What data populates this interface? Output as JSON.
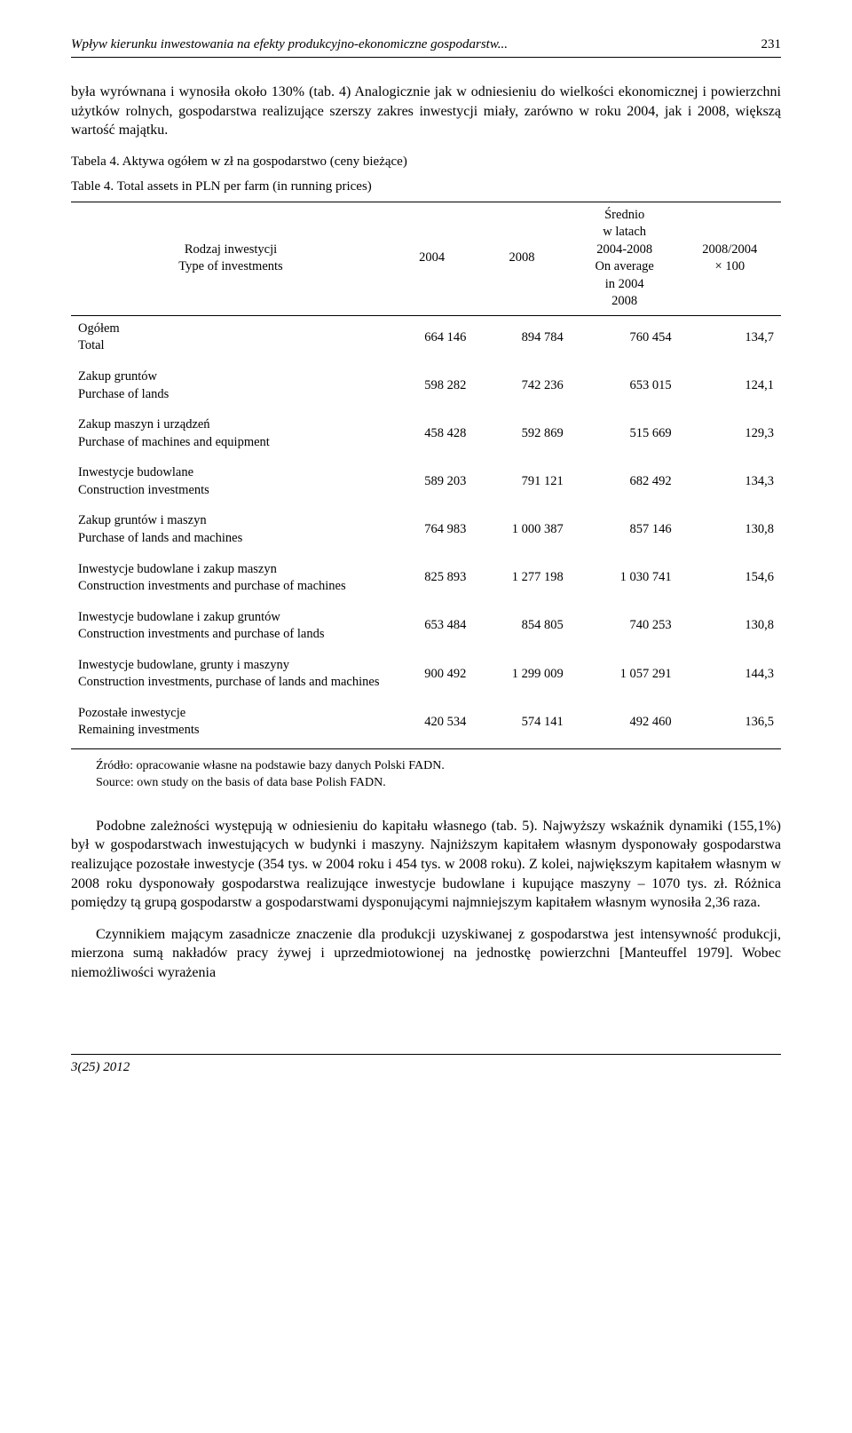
{
  "header": {
    "title": "Wpływ kierunku inwestowania na efekty produkcyjno-ekonomiczne gospodarstw...",
    "page": "231"
  },
  "para_intro": "była wyrównana i wynosiła około 130% (tab. 4) Analogicznie jak w odniesieniu do wielkości ekonomicznej i powierzchni użytków rolnych, gospodarstwa realizujące szerszy zakres inwestycji miały, zarówno w roku 2004, jak i 2008, większą wartość majątku.",
  "table": {
    "caption_pl": "Tabela 4. Aktywa ogółem w zł na gospodarstwo (ceny bieżące)",
    "caption_en": "Table 4.   Total assets in PLN per farm (in running prices)",
    "col_headers": {
      "c1": "Rodzaj inwestycji\nType of investments",
      "c2": "2004",
      "c3": "2008",
      "c4": "Średnio\nw latach\n2004-2008\nOn average\nin 2004\n2008",
      "c5": "2008/2004\n× 100"
    },
    "rows": [
      {
        "label_pl": "Ogółem",
        "label_en": "Total",
        "v": [
          "664 146",
          "894 784",
          "760 454",
          "134,7"
        ]
      },
      {
        "label_pl": "Zakup gruntów",
        "label_en": "Purchase of lands",
        "v": [
          "598 282",
          "742 236",
          "653 015",
          "124,1"
        ]
      },
      {
        "label_pl": "Zakup maszyn i urządzeń",
        "label_en": "Purchase of machines and equipment",
        "v": [
          "458 428",
          "592 869",
          "515 669",
          "129,3"
        ]
      },
      {
        "label_pl": "Inwestycje budowlane",
        "label_en": "Construction investments",
        "v": [
          "589 203",
          "791 121",
          "682 492",
          "134,3"
        ]
      },
      {
        "label_pl": "Zakup gruntów i maszyn",
        "label_en": "Purchase of lands and machines",
        "v": [
          "764 983",
          "1 000 387",
          "857 146",
          "130,8"
        ]
      },
      {
        "label_pl": "Inwestycje budowlane i zakup maszyn",
        "label_en": "Construction investments and purchase of machines",
        "v": [
          "825 893",
          "1 277 198",
          "1 030 741",
          "154,6"
        ]
      },
      {
        "label_pl": "Inwestycje budowlane i zakup gruntów",
        "label_en": "Construction investments and purchase of lands",
        "v": [
          "653 484",
          "854 805",
          "740 253",
          "130,8"
        ]
      },
      {
        "label_pl": "Inwestycje budowlane, grunty i maszyny",
        "label_en": "Construction investments, purchase of lands and machines",
        "v": [
          "900 492",
          "1 299 009",
          "1 057 291",
          "144,3"
        ]
      },
      {
        "label_pl": "Pozostałe inwestycje",
        "label_en": "Remaining investments",
        "v": [
          "420 534",
          "574 141",
          "492 460",
          "136,5"
        ]
      }
    ],
    "source_pl": "Źródło: opracowanie własne na podstawie bazy danych Polski FADN.",
    "source_en": "Source: own study on the basis of data base Polish FADN."
  },
  "para_body1": "Podobne zależności występują w odniesieniu do kapitału własnego (tab. 5). Najwyższy wskaźnik dynamiki (155,1%) był w gospodarstwach inwestujących w budynki i maszyny. Najniższym kapitałem własnym dysponowały gospodarstwa realizujące pozostałe inwestycje (354 tys. w 2004 roku i 454 tys. w 2008 roku). Z kolei, największym kapitałem własnym w 2008 roku dysponowały gospodarstwa realizujące inwestycje budowlane i kupujące maszyny – 1070 tys. zł. Różnica pomiędzy tą grupą gospodarstw a gospodarstwami dysponującymi najmniejszym kapitałem własnym wynosiła 2,36 raza.",
  "para_body2": "Czynnikiem mającym zasadnicze znaczenie dla produkcji uzyskiwanej z gospodarstwa jest intensywność produkcji, mierzona sumą nakładów pracy żywej i uprzedmiotowionej na jednostkę powierzchni [Manteuffel 1979]. Wobec niemożliwości wyrażenia",
  "footer": "3(25) 2012"
}
